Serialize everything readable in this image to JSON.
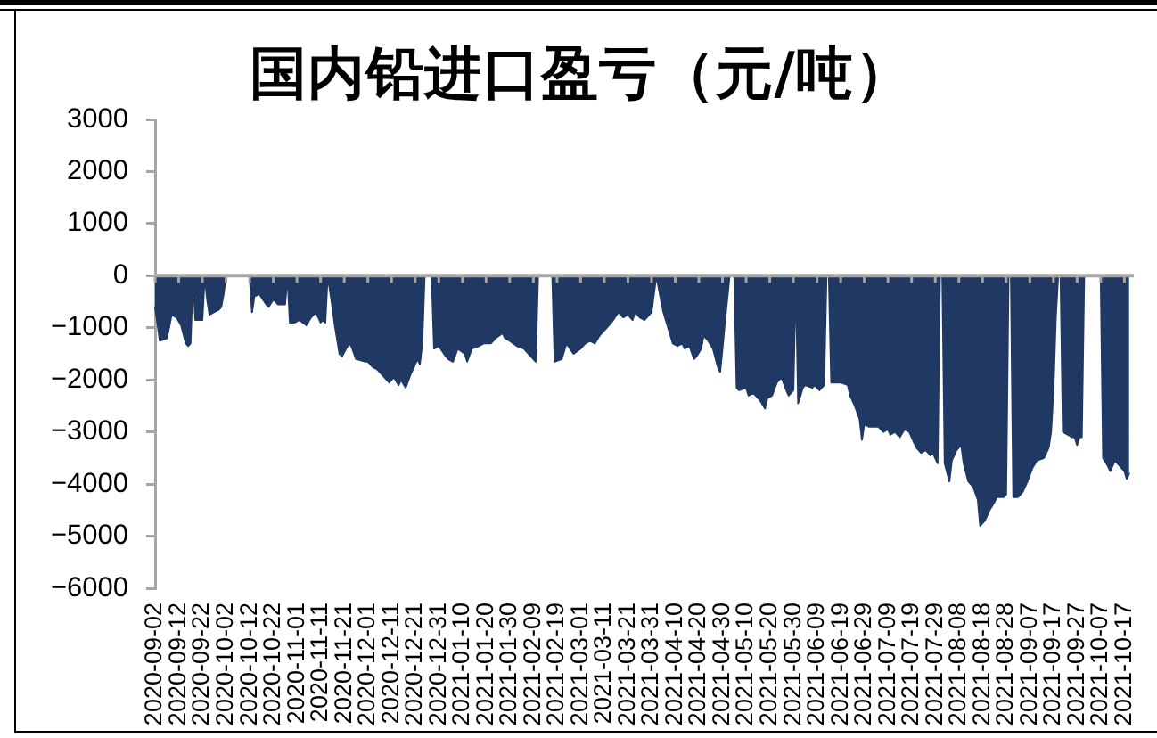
{
  "chart_data": {
    "type": "area",
    "title": "国内铅进口盈亏（元/吨）",
    "color": "#203864",
    "x": [
      "2020-09-02",
      "2020-09-04",
      "2020-09-07",
      "2020-09-09",
      "2020-09-11",
      "2020-09-13",
      "2020-09-15",
      "2020-09-16",
      "2020-09-17",
      "2020-09-18",
      "2020-09-19",
      "2020-09-22",
      "2020-09-23",
      "2020-09-24",
      "2020-09-25",
      "2020-09-27",
      "2020-09-29",
      "2020-09-30",
      "2020-10-01",
      "2020-10-02",
      "2020-10-12",
      "2020-10-13",
      "2020-10-14",
      "2020-10-16",
      "2020-10-19",
      "2020-10-20",
      "2020-10-22",
      "2020-10-24",
      "2020-10-27",
      "2020-10-28",
      "2020-10-29",
      "2020-10-31",
      "2020-11-02",
      "2020-11-05",
      "2020-11-07",
      "2020-11-09",
      "2020-11-11",
      "2020-11-12",
      "2020-11-13",
      "2020-11-14",
      "2020-11-16",
      "2020-11-17",
      "2020-11-19",
      "2020-11-20",
      "2020-11-23",
      "2020-11-24",
      "2020-11-26",
      "2020-11-30",
      "2020-12-01",
      "2020-12-03",
      "2020-12-05",
      "2020-12-07",
      "2020-12-10",
      "2020-12-12",
      "2020-12-14",
      "2020-12-15",
      "2020-12-17",
      "2020-12-19",
      "2020-12-20",
      "2020-12-22",
      "2020-12-23",
      "2020-12-24",
      "2020-12-25",
      "2020-12-28",
      "2020-12-29",
      "2020-12-31",
      "2021-01-03",
      "2021-01-04",
      "2021-01-06",
      "2021-01-08",
      "2021-01-11",
      "2021-01-12",
      "2021-01-14",
      "2021-01-17",
      "2021-01-19",
      "2021-01-22",
      "2021-01-24",
      "2021-01-27",
      "2021-01-28",
      "2021-01-30",
      "2021-02-02",
      "2021-02-05",
      "2021-02-07",
      "2021-02-09",
      "2021-02-10",
      "2021-02-11",
      "2021-02-17",
      "2021-02-18",
      "2021-02-21",
      "2021-02-23",
      "2021-02-26",
      "2021-03-01",
      "2021-03-03",
      "2021-03-05",
      "2021-03-07",
      "2021-03-09",
      "2021-03-12",
      "2021-03-14",
      "2021-03-17",
      "2021-03-19",
      "2021-03-21",
      "2021-03-23",
      "2021-03-24",
      "2021-03-26",
      "2021-03-28",
      "2021-03-30",
      "2021-03-31",
      "2021-04-02",
      "2021-04-05",
      "2021-04-07",
      "2021-04-09",
      "2021-04-11",
      "2021-04-13",
      "2021-04-14",
      "2021-04-16",
      "2021-04-18",
      "2021-04-19",
      "2021-04-21",
      "2021-04-22",
      "2021-04-24",
      "2021-04-26",
      "2021-04-28",
      "2021-04-29",
      "2021-04-30",
      "2021-05-01",
      "2021-05-03",
      "2021-05-05",
      "2021-05-06",
      "2021-05-07",
      "2021-05-10",
      "2021-05-11",
      "2021-05-13",
      "2021-05-15",
      "2021-05-16",
      "2021-05-18",
      "2021-05-19",
      "2021-05-21",
      "2021-05-23",
      "2021-05-25",
      "2021-05-27",
      "2021-05-28",
      "2021-05-30",
      "2021-05-31",
      "2021-06-01",
      "2021-06-03",
      "2021-06-04",
      "2021-06-07",
      "2021-06-08",
      "2021-06-10",
      "2021-06-12",
      "2021-06-13",
      "2021-06-14",
      "2021-06-15",
      "2021-06-17",
      "2021-06-19",
      "2021-06-22",
      "2021-06-23",
      "2021-06-25",
      "2021-06-27",
      "2021-06-28",
      "2021-06-29",
      "2021-07-01",
      "2021-07-03",
      "2021-07-05",
      "2021-07-07",
      "2021-07-09",
      "2021-07-10",
      "2021-07-12",
      "2021-07-14",
      "2021-07-16",
      "2021-07-18",
      "2021-07-20",
      "2021-07-21",
      "2021-07-23",
      "2021-07-25",
      "2021-07-27",
      "2021-07-28",
      "2021-07-30",
      "2021-07-31",
      "2021-08-01",
      "2021-08-02",
      "2021-08-04",
      "2021-08-05",
      "2021-08-07",
      "2021-08-09",
      "2021-08-10",
      "2021-08-12",
      "2021-08-14",
      "2021-08-16",
      "2021-08-17",
      "2021-08-19",
      "2021-08-21",
      "2021-08-23",
      "2021-08-24",
      "2021-08-26",
      "2021-08-27",
      "2021-08-28",
      "2021-08-29",
      "2021-08-30",
      "2021-08-31",
      "2021-09-02",
      "2021-09-04",
      "2021-09-06",
      "2021-09-08",
      "2021-09-10",
      "2021-09-13",
      "2021-09-15",
      "2021-09-16",
      "2021-09-17",
      "2021-09-18",
      "2021-09-19",
      "2021-09-20",
      "2021-09-21",
      "2021-09-23",
      "2021-09-25",
      "2021-09-26",
      "2021-09-27",
      "2021-09-28",
      "2021-09-29",
      "2021-09-30",
      "2021-10-07",
      "2021-10-08",
      "2021-10-10",
      "2021-10-11",
      "2021-10-13",
      "2021-10-15",
      "2021-10-17",
      "2021-10-18",
      "2021-10-19"
    ],
    "values": [
      -600,
      -1250,
      -1200,
      -750,
      -800,
      -950,
      -1300,
      -1350,
      -1300,
      0,
      -850,
      -850,
      0,
      -450,
      -750,
      -700,
      -650,
      -600,
      -350,
      0,
      0,
      -700,
      -400,
      -350,
      -550,
      -600,
      -450,
      -550,
      -550,
      0,
      -900,
      -900,
      -850,
      -950,
      -800,
      -700,
      -900,
      -850,
      -900,
      0,
      -600,
      -950,
      -1500,
      -1550,
      -1300,
      -1350,
      -1600,
      -1650,
      -1650,
      -1750,
      -1800,
      -1900,
      -2050,
      -1950,
      -2100,
      -2000,
      -2150,
      -1900,
      -1800,
      -1600,
      -1700,
      -1300,
      0,
      0,
      -1400,
      -1350,
      -1550,
      -1600,
      -1650,
      -1400,
      -1500,
      -1650,
      -1400,
      -1350,
      -1300,
      -1300,
      -1200,
      -1100,
      -1200,
      -1250,
      -1350,
      -1400,
      -1500,
      -1600,
      -1650,
      0,
      0,
      -1650,
      -1600,
      -1300,
      -1500,
      -1400,
      -1300,
      -1250,
      -1300,
      -1150,
      -1000,
      -900,
      -700,
      -800,
      -750,
      -850,
      -700,
      -800,
      -850,
      -750,
      -700,
      0,
      -700,
      -1000,
      -1300,
      -1350,
      -1300,
      -1400,
      -1350,
      -1600,
      -1550,
      -1400,
      -1150,
      -1250,
      -1400,
      -1750,
      -1850,
      -1400,
      -900,
      0,
      0,
      -2150,
      -2200,
      -2150,
      -2300,
      -2250,
      -2350,
      -2400,
      -2550,
      -2350,
      -2300,
      -2050,
      -1950,
      -2200,
      -2300,
      -2200,
      0,
      -2450,
      -2150,
      -2100,
      -2150,
      -2100,
      -2200,
      -2100,
      0,
      0,
      -2050,
      -2050,
      -2050,
      -2100,
      -2300,
      -2500,
      -2750,
      -3150,
      -2850,
      -2900,
      -2900,
      -2900,
      -3000,
      -2950,
      -3050,
      -3000,
      -3100,
      -2950,
      -3000,
      -3200,
      -3300,
      -3400,
      -3350,
      -3450,
      -3400,
      -3600,
      0,
      0,
      -3600,
      -3950,
      -3550,
      -3350,
      -3250,
      -3600,
      -3950,
      -4050,
      -4300,
      -4800,
      -4700,
      -4500,
      -4350,
      -4250,
      -4250,
      -4250,
      -4200,
      0,
      0,
      -4250,
      -4250,
      -4150,
      -3950,
      -3700,
      -3550,
      -3500,
      -3300,
      -3000,
      -2200,
      -800,
      0,
      0,
      -3000,
      -3050,
      -3100,
      -3100,
      -3250,
      -3100,
      -3100,
      0,
      0,
      -3500,
      -3650,
      -3750,
      -3550,
      -3650,
      -3750,
      -3900,
      -3800
    ],
    "xlim": [
      "2020-09-02",
      "2021-10-21"
    ],
    "xticks": [
      "2020-09-02",
      "2020-09-12",
      "2020-09-22",
      "2020-10-02",
      "2020-10-12",
      "2020-10-22",
      "2020-11-01",
      "2020-11-11",
      "2020-11-21",
      "2020-12-01",
      "2020-12-11",
      "2020-12-21",
      "2020-12-31",
      "2021-01-10",
      "2021-01-20",
      "2021-01-30",
      "2021-02-09",
      "2021-02-19",
      "2021-03-01",
      "2021-03-11",
      "2021-03-21",
      "2021-03-31",
      "2021-04-10",
      "2021-04-20",
      "2021-04-30",
      "2021-05-10",
      "2021-05-20",
      "2021-05-30",
      "2021-06-09",
      "2021-06-19",
      "2021-06-29",
      "2021-07-09",
      "2021-07-19",
      "2021-07-29",
      "2021-08-08",
      "2021-08-18",
      "2021-08-28",
      "2021-09-07",
      "2021-09-17",
      "2021-09-27",
      "2021-10-07",
      "2021-10-17"
    ],
    "ylim": [
      -6000,
      3000
    ],
    "yticks": [
      {
        "value": -6000,
        "label": "−6000"
      },
      {
        "value": -5000,
        "label": "−5000"
      },
      {
        "value": -4000,
        "label": "−4000"
      },
      {
        "value": -3000,
        "label": "−3000"
      },
      {
        "value": -2000,
        "label": "−2000"
      },
      {
        "value": -1000,
        "label": "−1000"
      },
      0,
      1000,
      2000,
      3000
    ]
  }
}
